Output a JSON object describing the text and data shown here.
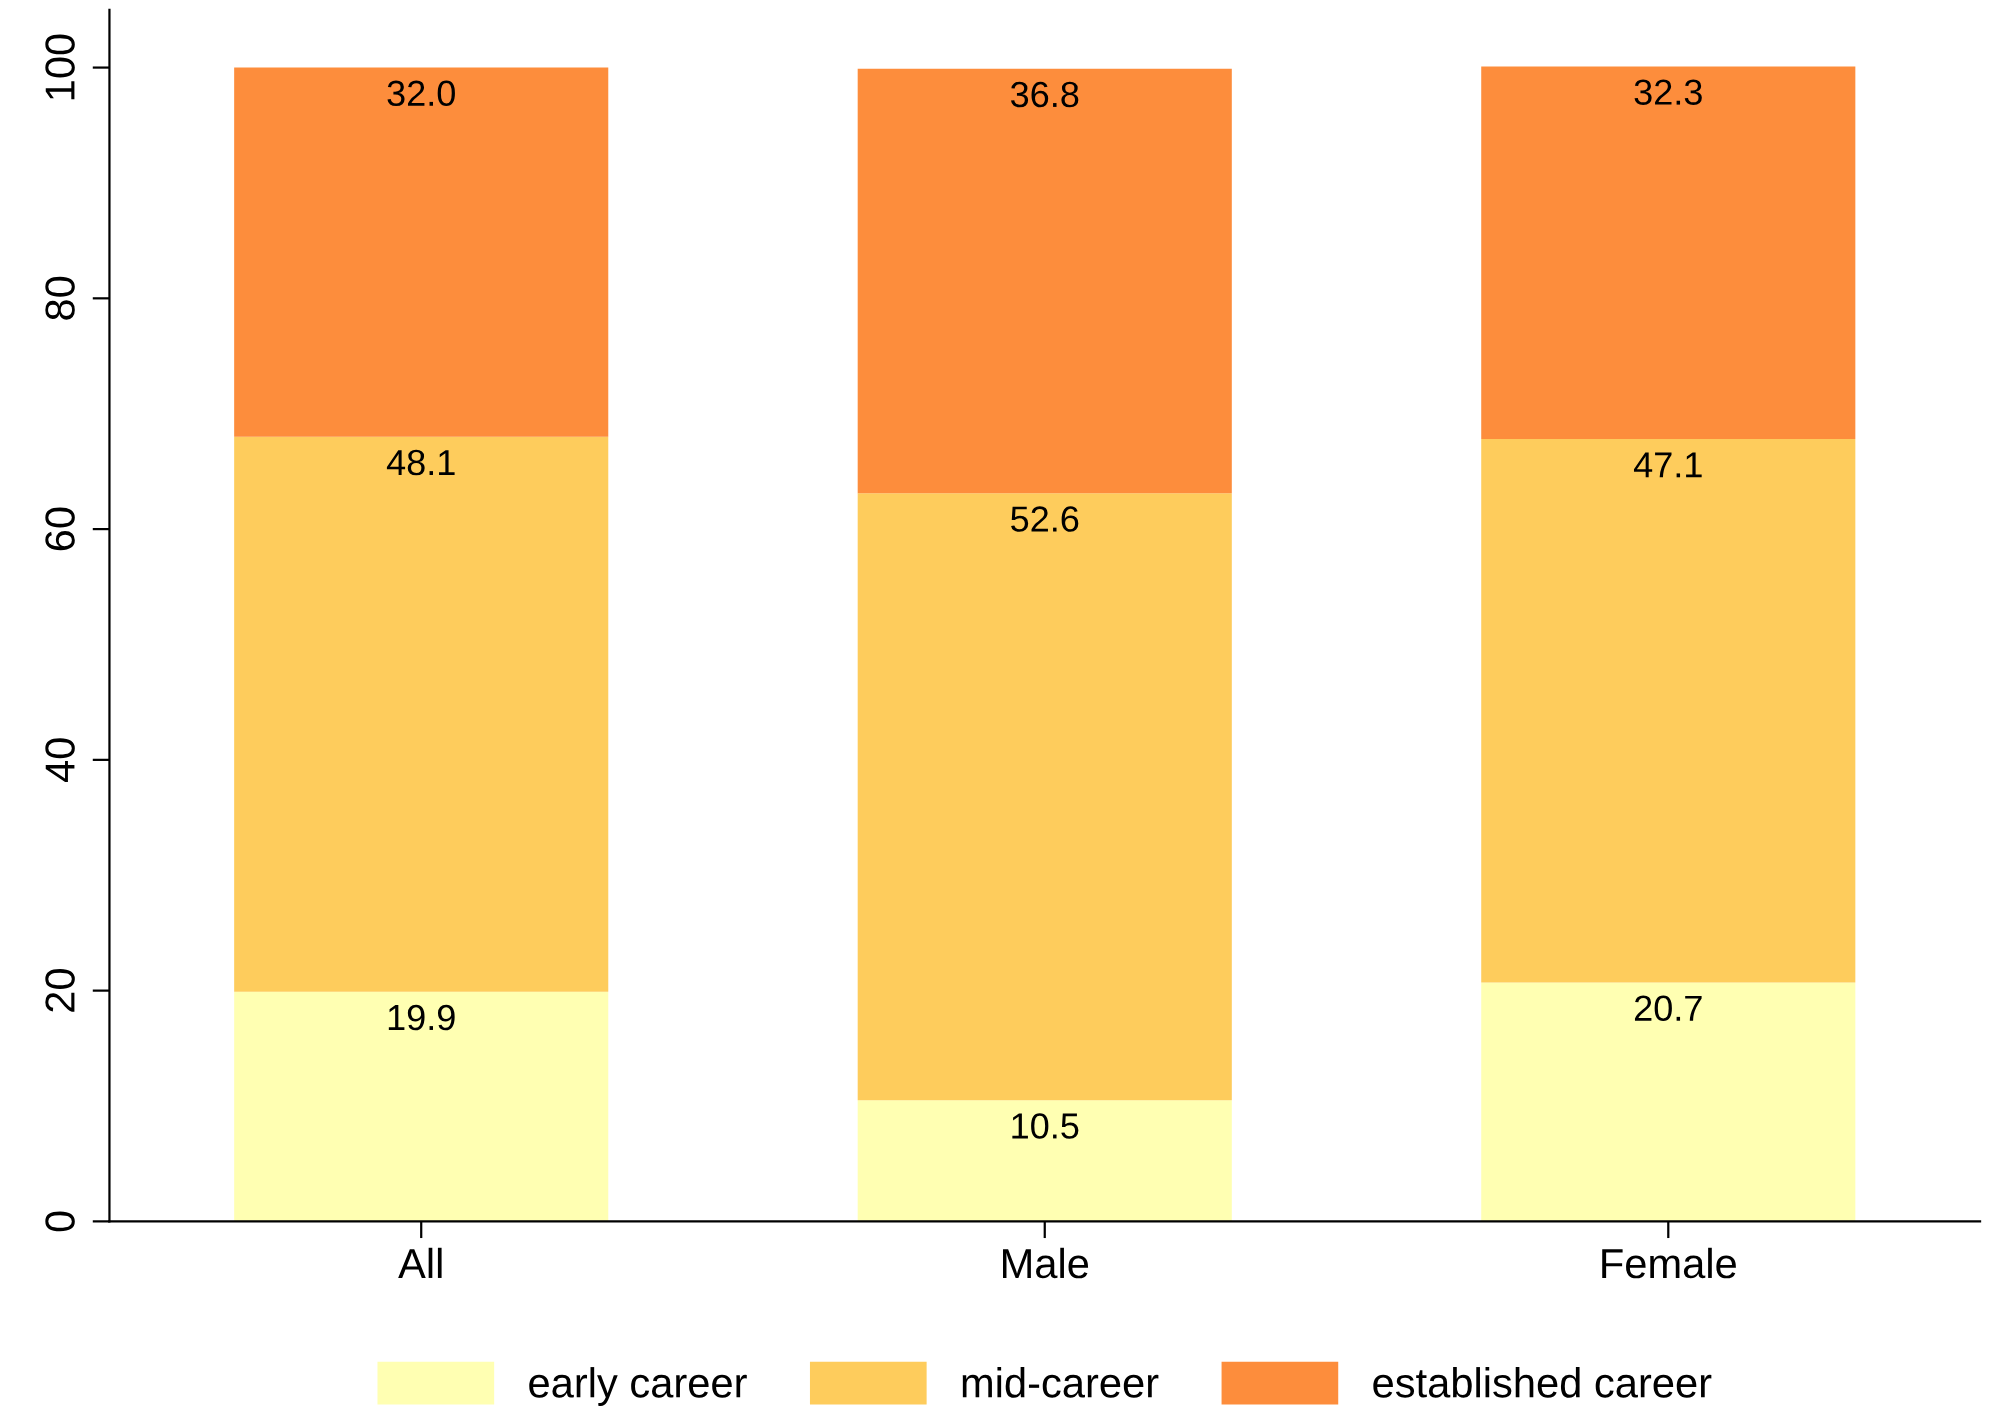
{
  "chart_data": {
    "type": "bar",
    "stacked": true,
    "categories": [
      "All",
      "Male",
      "Female"
    ],
    "series": [
      {
        "name": "early career",
        "color": "#ffffb2",
        "values": [
          19.9,
          10.5,
          20.7
        ],
        "value_labels": [
          "19.9",
          "10.5",
          "20.7"
        ]
      },
      {
        "name": "mid-career",
        "color": "#fecc5c",
        "values": [
          48.1,
          52.6,
          47.1
        ],
        "value_labels": [
          "48.1",
          "52.6",
          "47.1"
        ]
      },
      {
        "name": "established career",
        "color": "#fd8d3c",
        "values": [
          32.0,
          36.8,
          32.3
        ],
        "value_labels": [
          "32.0",
          "36.8",
          "32.3"
        ]
      }
    ],
    "ylim": [
      0,
      105
    ],
    "yticks": [
      0,
      20,
      40,
      60,
      80,
      100
    ],
    "grid": false,
    "legend": "bottom"
  }
}
